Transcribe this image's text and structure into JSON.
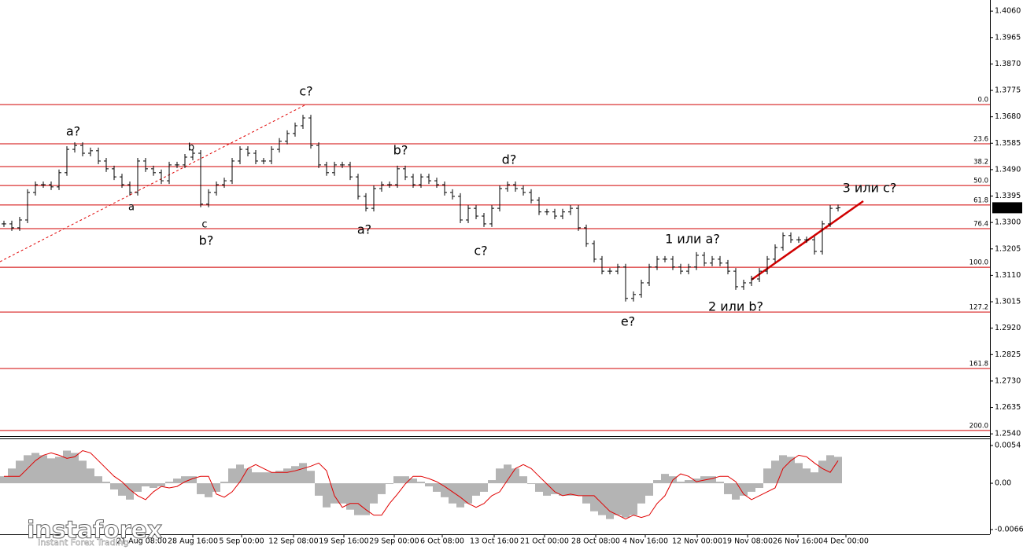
{
  "chart_data": [
    {
      "type": "price-bars",
      "color": "#000000",
      "values": [
        1.3295,
        1.3281,
        1.3309,
        1.3408,
        1.3436,
        1.3436,
        1.3428,
        1.3479,
        1.3563,
        1.3577,
        1.3549,
        1.3558,
        1.3521,
        1.3493,
        1.3464,
        1.3436,
        1.3408,
        1.3521,
        1.3493,
        1.3479,
        1.345,
        1.3507,
        1.3507,
        1.3535,
        1.3549,
        1.3366,
        1.3408,
        1.3436,
        1.345,
        1.3521,
        1.3563,
        1.3549,
        1.3521,
        1.3521,
        1.3563,
        1.3592,
        1.362,
        1.3648,
        1.3676,
        1.3577,
        1.3507,
        1.3479,
        1.3507,
        1.3507,
        1.3464,
        1.3394,
        1.3351,
        1.3422,
        1.3436,
        1.3436,
        1.3493,
        1.3464,
        1.3436,
        1.3464,
        1.345,
        1.3436,
        1.3408,
        1.3394,
        1.3309,
        1.3351,
        1.3323,
        1.3295,
        1.3351,
        1.3422,
        1.3436,
        1.3422,
        1.3408,
        1.338,
        1.3338,
        1.3338,
        1.3323,
        1.3338,
        1.3351,
        1.3281,
        1.3224,
        1.3168,
        1.3125,
        1.3125,
        1.314,
        1.3027,
        1.3041,
        1.3083,
        1.314,
        1.3168,
        1.3168,
        1.314,
        1.3125,
        1.314,
        1.3182,
        1.3154,
        1.3168,
        1.3154,
        1.3125,
        1.3069,
        1.3083,
        1.3097,
        1.3125,
        1.3168,
        1.321,
        1.3253,
        1.3238,
        1.3238,
        1.3238,
        1.3196,
        1.3295,
        1.3351,
        1.3353
      ],
      "xlim": [
        0,
        125.8
      ],
      "ylim": [
        1.2532,
        1.41
      ],
      "xticks": [
        {
          "value": 18.0,
          "label": "21 Aug 08:00"
        },
        {
          "value": 24.5,
          "label": "28 Aug 16:00"
        },
        {
          "value": 30.7,
          "label": "5 Sep 00:00"
        },
        {
          "value": 37.3,
          "label": "12 Sep 08:00"
        },
        {
          "value": 43.7,
          "label": "19 Sep 16:00"
        },
        {
          "value": 50.1,
          "label": "29 Sep 00:00"
        },
        {
          "value": 56.2,
          "label": "6 Oct 08:00"
        },
        {
          "value": 62.8,
          "label": "13 Oct 16:00"
        },
        {
          "value": 69.2,
          "label": "21 Oct 00:00"
        },
        {
          "value": 75.7,
          "label": "28 Oct 08:00"
        },
        {
          "value": 82.0,
          "label": "4 Nov 16:00"
        },
        {
          "value": 88.6,
          "label": "12 Nov 00:00"
        },
        {
          "value": 95.0,
          "label": "19 Nov 08:00"
        },
        {
          "value": 101.4,
          "label": "26 Nov 16:00"
        },
        {
          "value": 107.5,
          "label": "4 Dec 00:00"
        }
      ],
      "yticks": [
        {
          "value": 1.406,
          "label": "1.4060"
        },
        1.3965,
        {
          "value": 1.387,
          "label": "1.3870"
        },
        1.3775,
        {
          "value": 1.368,
          "label": "1.3680"
        },
        1.3585,
        {
          "value": 1.349,
          "label": "1.3490"
        },
        1.3395,
        {
          "value": 1.33,
          "label": "1.3300"
        },
        1.3205,
        {
          "value": 1.311,
          "label": "1.3110"
        },
        1.3015,
        {
          "value": 1.292,
          "label": "1.2920"
        },
        1.2825,
        {
          "value": 1.273,
          "label": "1.2730"
        },
        1.2635,
        {
          "value": 1.254,
          "label": "1.2540"
        }
      ],
      "current_price": {
        "value": 1.3353,
        "label": "1.3353"
      },
      "level_color": "#d00000",
      "levels": [
        {
          "label": "0.0",
          "value": 1.3724
        },
        {
          "label": "23.6",
          "value": 1.3583
        },
        {
          "label": "38.2",
          "value": 1.3501
        },
        {
          "label": "50.0",
          "value": 1.3433
        },
        {
          "label": "61.8",
          "value": 1.3363
        },
        {
          "label": "76.4",
          "value": 1.3278
        },
        {
          "label": "100.0",
          "value": 1.3139
        },
        {
          "label": "127.2",
          "value": 1.2978
        },
        {
          "label": "161.8",
          "value": 1.2775
        },
        {
          "label": "200.0",
          "value": 1.2552
        }
      ],
      "annotations": [
        {
          "text": "a?",
          "color": "#e00000"
        },
        {
          "text": "c?",
          "color": "#e00000"
        },
        {
          "text": "b?",
          "color": "#e00000"
        },
        {
          "text": "d?",
          "color": "#e00000"
        },
        {
          "text": "b?",
          "color": "#e00000"
        },
        {
          "text": "a?",
          "color": "#e00000"
        },
        {
          "text": "c?",
          "color": "#e00000"
        },
        {
          "text": "e?",
          "color": "#e00000"
        },
        {
          "text": "1 или a?",
          "color": "#e00000"
        },
        {
          "text": "2 или b?",
          "color": "#e00000"
        },
        {
          "text": "3 или c?",
          "color": "#e00000"
        },
        {
          "text": "b",
          "color": "#1010d0"
        },
        {
          "text": "a",
          "color": "#1010d0"
        },
        {
          "text": "c",
          "color": "#1010d0"
        }
      ]
    },
    {
      "type": "oscillator",
      "xlim": [
        0,
        125.8
      ],
      "ylim": [
        -0.0073,
        0.0063
      ],
      "yticks": [
        0.0054,
        {
          "value": 0,
          "label": "0.00"
        },
        -0.00662
      ],
      "series": [
        {
          "color": "#b4b4b4",
          "values": [
            0.001,
            0.00211,
            0.00323,
            0.00401,
            0.00434,
            0.00401,
            0.00356,
            0.00378,
            0.00467,
            0.00434,
            0.00323,
            0.00211,
            0.001,
            0.00022,
            -0.00089,
            -0.00178,
            -0.00234,
            -0.00122,
            -0.00045,
            -0.00067,
            -0.00045,
            0.00022,
            0.00067,
            0.001,
            0.001,
            -0.00156,
            -0.002,
            -0.00122,
            0.00022,
            0.00211,
            0.00267,
            0.00211,
            0.00156,
            0.00156,
            0.00156,
            0.00178,
            0.00211,
            0.00245,
            0.00289,
            0.00178,
            -0.00178,
            -0.00345,
            -0.00289,
            -0.00289,
            -0.00378,
            -0.00456,
            -0.00456,
            -0.00289,
            -0.00156,
            -0.00011,
            0.001,
            0.001,
            0.00067,
            0.00022,
            -0.00045,
            -0.00122,
            -0.002,
            -0.00289,
            -0.00345,
            -0.00289,
            -0.00178,
            -0.00122,
            0.00045,
            0.00211,
            0.00267,
            0.00211,
            0.001,
            -0.00011,
            -0.00122,
            -0.00178,
            -0.00156,
            -0.00178,
            -0.00178,
            -0.00178,
            -0.00289,
            -0.00401,
            -0.00456,
            -0.00512,
            -0.00456,
            -0.0049,
            -0.00456,
            -0.00289,
            -0.00178,
            0.00045,
            0.00134,
            0.001,
            0.00022,
            0.00045,
            0.00067,
            0.001,
            0.001,
            0.00022,
            -0.00156,
            -0.00234,
            -0.00178,
            -0.00122,
            -0.00067,
            0.00211,
            0.00323,
            0.00401,
            0.00378,
            0.00289,
            0.00211,
            0.00156,
            0.00323,
            0.00401,
            0.00378
          ]
        },
        {
          "color": "#e00000",
          "values": [
            0.001,
            0.001,
            0.001,
            0.00211,
            0.00323,
            0.00401,
            0.00434,
            0.00401,
            0.00356,
            0.00378,
            0.00467,
            0.00434,
            0.00323,
            0.00211,
            0.001,
            0.00022,
            -0.00089,
            -0.00178,
            -0.00234,
            -0.00122,
            -0.00045,
            -0.00067,
            -0.00045,
            0.00022,
            0.00067,
            0.001,
            0.001,
            -0.00156,
            -0.002,
            -0.00122,
            0.00022,
            0.00211,
            0.00267,
            0.00211,
            0.00156,
            0.00156,
            0.00156,
            0.00178,
            0.00211,
            0.00245,
            0.00289,
            0.00178,
            -0.00178,
            -0.00345,
            -0.00289,
            -0.00289,
            -0.00378,
            -0.00456,
            -0.00456,
            -0.00289,
            -0.00156,
            -0.00011,
            0.001,
            0.001,
            0.00067,
            0.00022,
            -0.00045,
            -0.00122,
            -0.002,
            -0.00289,
            -0.00345,
            -0.00289,
            -0.00178,
            -0.00122,
            0.00045,
            0.00211,
            0.00267,
            0.00211,
            0.001,
            -0.00011,
            -0.00122,
            -0.00178,
            -0.00156,
            -0.00178,
            -0.00178,
            -0.00178,
            -0.00289,
            -0.00401,
            -0.00456,
            -0.00512,
            -0.00456,
            -0.0049,
            -0.00456,
            -0.00289,
            -0.00178,
            0.00045,
            0.00134,
            0.001,
            0.00022,
            0.00045,
            0.00067,
            0.001,
            0.001,
            0.00022,
            -0.00156,
            -0.00234,
            -0.00178,
            -0.00122,
            -0.00067,
            0.00211,
            0.00323,
            0.00401,
            0.00378,
            0.00289,
            0.00211,
            0.00156,
            0.00323
          ]
        }
      ]
    }
  ],
  "branding": {
    "name": "instaforex",
    "tagline": "Instant Forex Trading"
  }
}
